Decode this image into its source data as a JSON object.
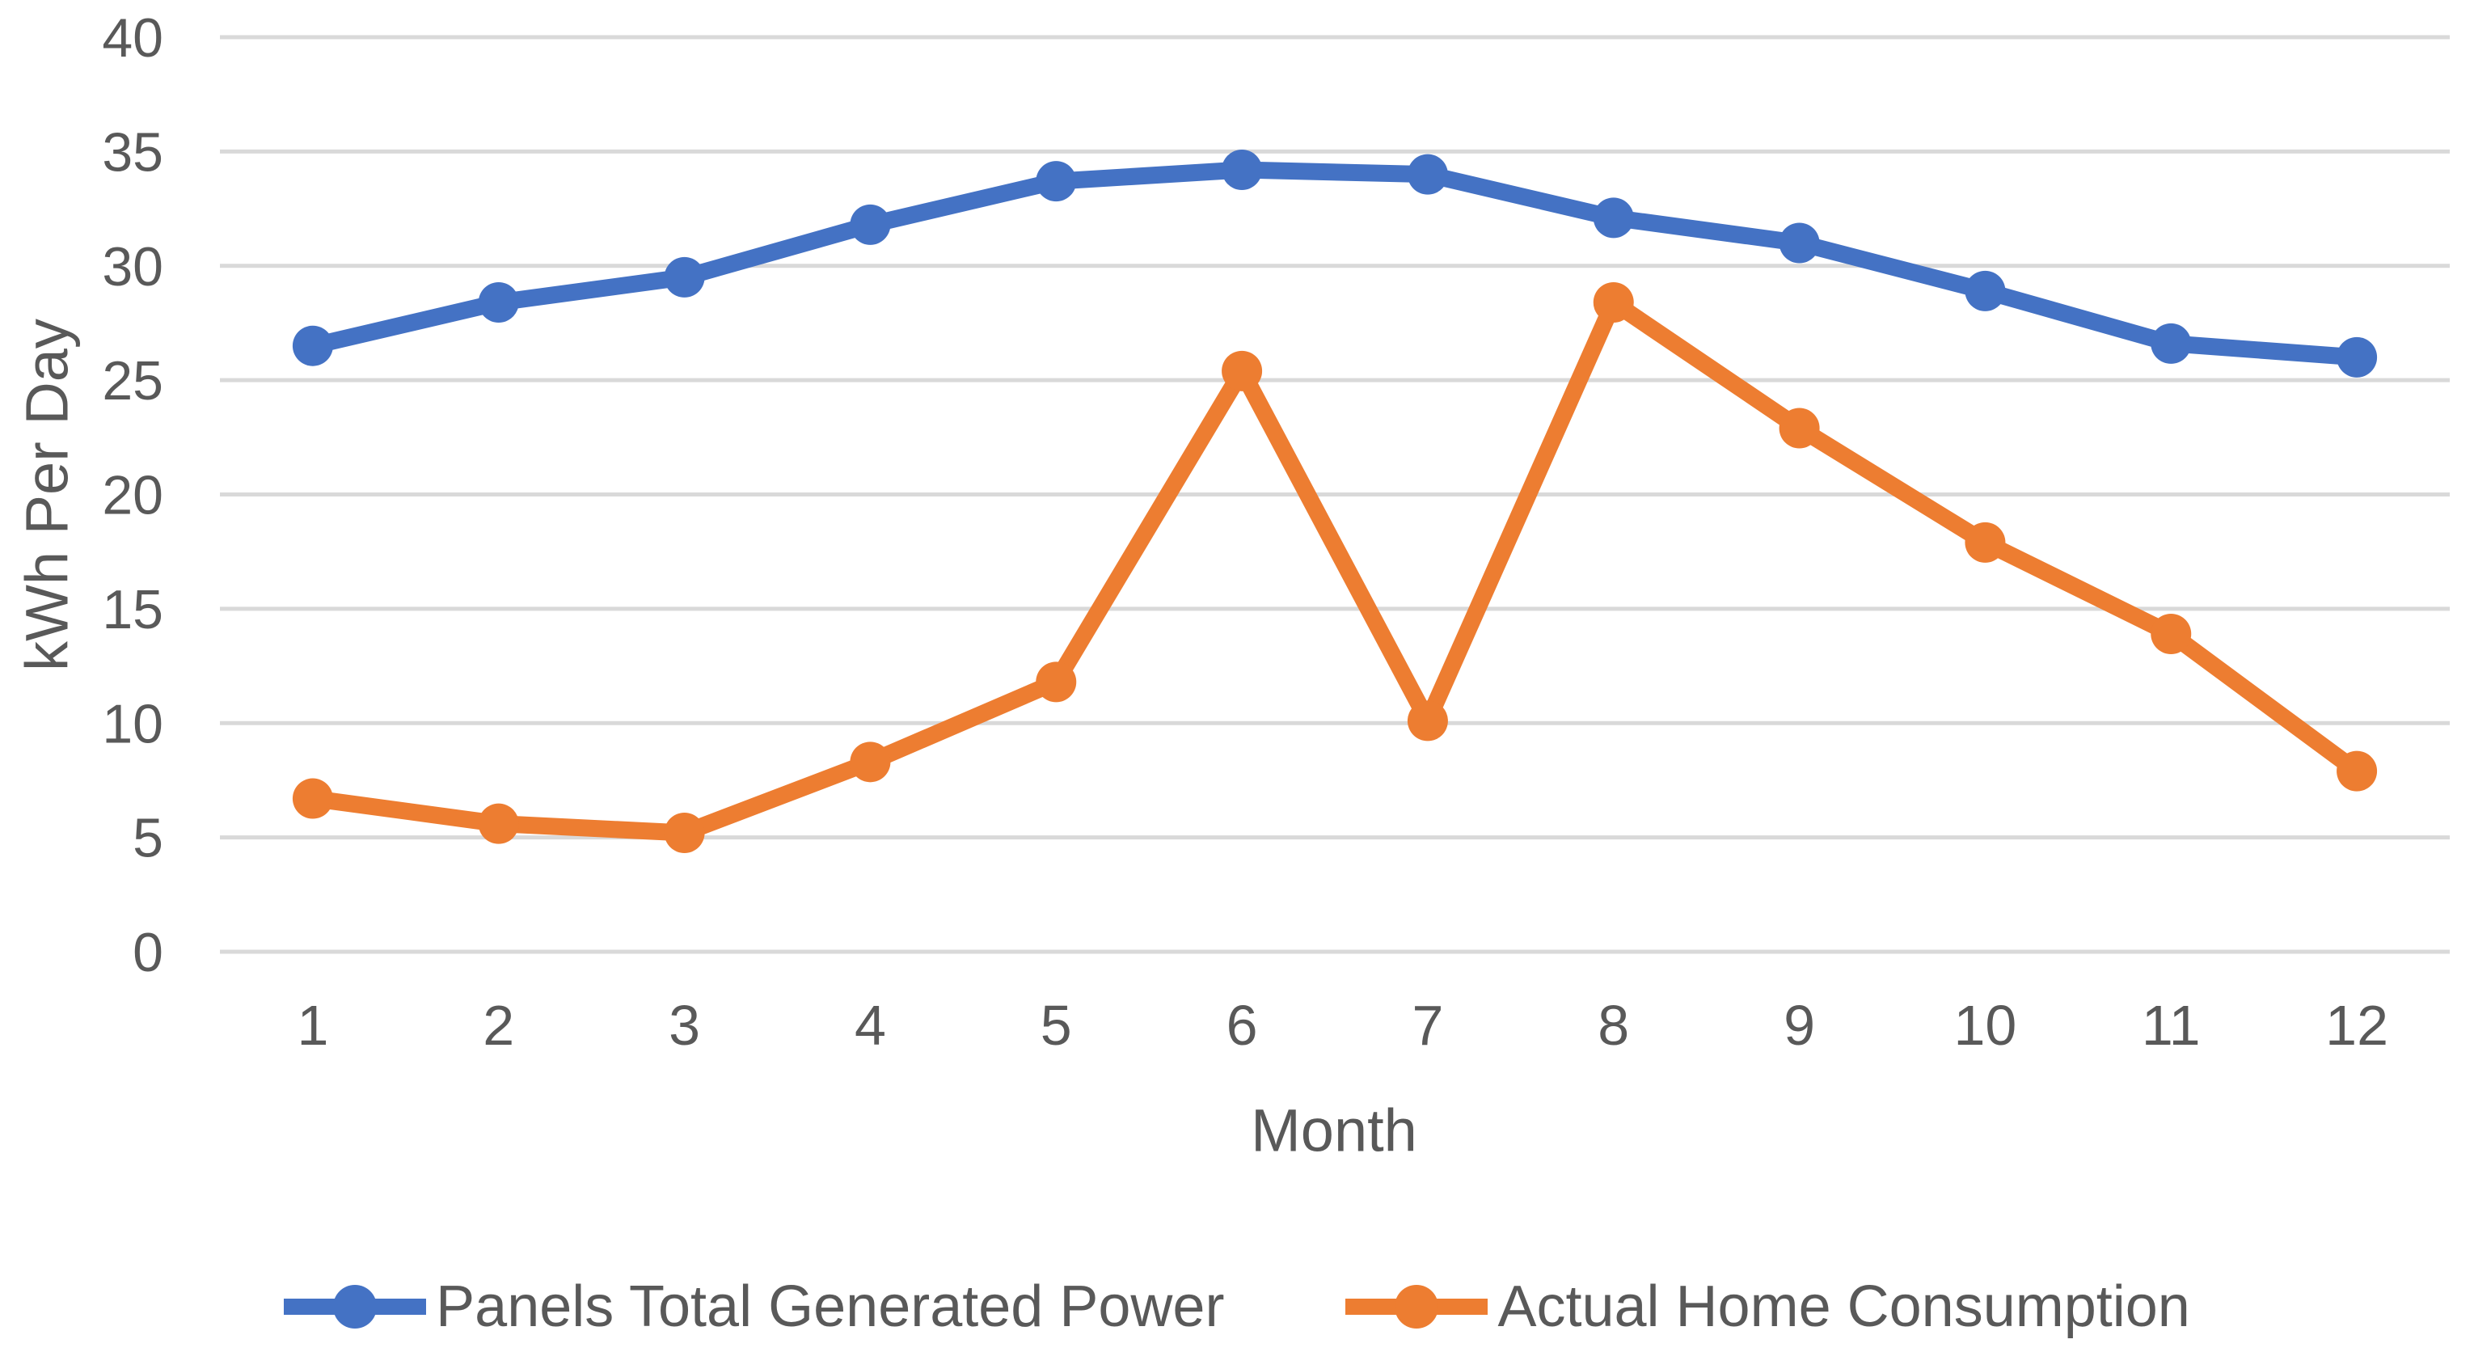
{
  "chart_data": {
    "type": "line",
    "x": [
      1,
      2,
      3,
      4,
      5,
      6,
      7,
      8,
      9,
      10,
      11,
      12
    ],
    "x_tick_labels": [
      "1",
      "2",
      "3",
      "4",
      "5",
      "6",
      "7",
      "8",
      "9",
      "10",
      "11",
      "12"
    ],
    "series": [
      {
        "name": "Panels Total Generated Power",
        "color": "#4472C4",
        "values": [
          26.5,
          28.4,
          29.5,
          31.8,
          33.7,
          34.2,
          34.0,
          32.1,
          31.0,
          28.9,
          26.6,
          26.0
        ]
      },
      {
        "name": "Actual Home Consumption",
        "color": "#ED7D31",
        "values": [
          6.7,
          5.6,
          5.2,
          8.3,
          11.8,
          25.4,
          10.1,
          28.4,
          22.9,
          17.9,
          13.9,
          7.9
        ]
      }
    ],
    "title": "",
    "xlabel": "Month",
    "ylabel": "kWh Per Day",
    "ylim": [
      0,
      40
    ],
    "yticks": [
      0,
      5,
      10,
      15,
      20,
      25,
      30,
      35,
      40
    ],
    "grid": true,
    "gridline_color": "#D9D9D9",
    "text_color": "#595959",
    "background_color": "#FFFFFF",
    "legend_position": "bottom",
    "marker": "circle"
  }
}
